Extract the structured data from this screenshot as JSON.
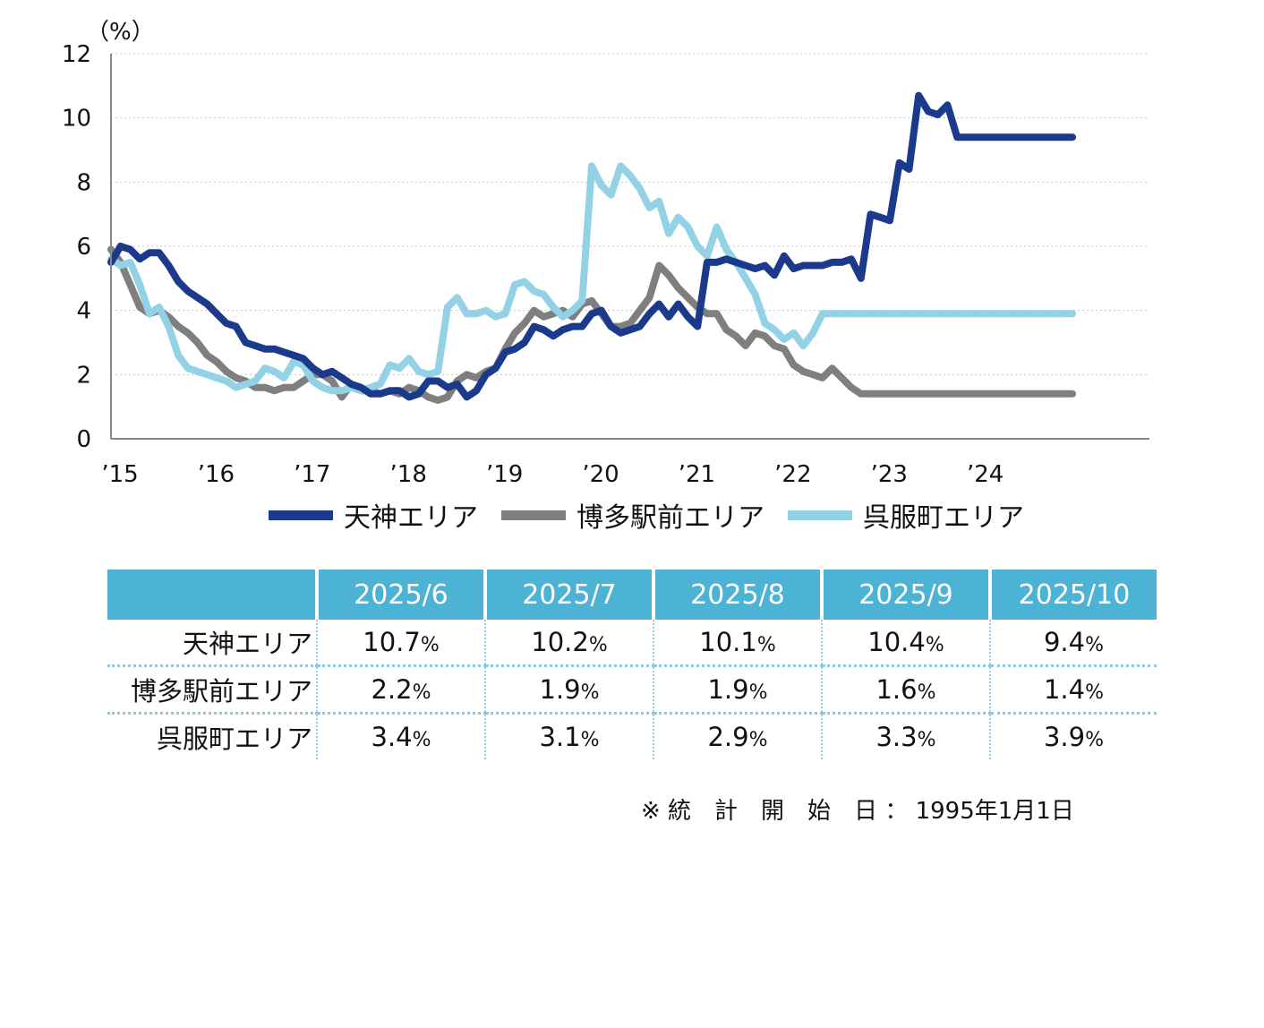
{
  "chart_data": {
    "type": "line",
    "y_unit_label": "（%）",
    "ylim": [
      0,
      12
    ],
    "yticks": [
      0,
      2,
      4,
      6,
      8,
      10,
      12
    ],
    "xlim": [
      2015.0,
      2025.8
    ],
    "xtick_labels": [
      "’15",
      "’16",
      "’17",
      "’18",
      "’19",
      "’20",
      "’21",
      "’22",
      "’23",
      "’24"
    ],
    "xtick_years": [
      2015,
      2016,
      2017,
      2018,
      2019,
      2020,
      2021,
      2022,
      2023,
      2024
    ],
    "grid": "horizontal dotted",
    "legend_position": "bottom",
    "series": [
      {
        "name": "天神エリア",
        "color": "#1c3a8c",
        "x": [
          2015.0,
          2015.1,
          2015.2,
          2015.3,
          2015.4,
          2015.5,
          2015.6,
          2015.7,
          2015.8,
          2015.9,
          2016.0,
          2016.1,
          2016.2,
          2016.3,
          2016.4,
          2016.5,
          2016.6,
          2016.7,
          2016.8,
          2016.9,
          2017.0,
          2017.1,
          2017.2,
          2017.3,
          2017.4,
          2017.5,
          2017.6,
          2017.7,
          2017.8,
          2017.9,
          2018.0,
          2018.1,
          2018.2,
          2018.3,
          2018.4,
          2018.5,
          2018.6,
          2018.7,
          2018.8,
          2018.9,
          2019.0,
          2019.1,
          2019.2,
          2019.3,
          2019.4,
          2019.5,
          2019.6,
          2019.7,
          2019.8,
          2019.9,
          2020.0,
          2020.1,
          2020.2,
          2020.3,
          2020.4,
          2020.5,
          2020.6,
          2020.7,
          2020.8,
          2020.9,
          2021.0,
          2021.1,
          2021.2,
          2021.3,
          2021.4,
          2021.5,
          2021.6,
          2021.7,
          2021.8,
          2021.9,
          2022.0,
          2022.1,
          2022.2,
          2022.3,
          2022.4,
          2022.5,
          2022.6,
          2022.7,
          2022.8,
          2022.9,
          2023.0,
          2023.1,
          2023.2,
          2023.3,
          2023.4,
          2023.5,
          2023.6,
          2023.7,
          2023.8,
          2023.9,
          2024.0,
          2024.1,
          2024.2,
          2024.3,
          2024.4,
          2024.5,
          2024.6,
          2024.7,
          2024.8,
          2024.9,
          2025.0
        ],
        "values": [
          5.5,
          6.0,
          5.9,
          5.6,
          5.8,
          5.8,
          5.4,
          4.9,
          4.6,
          4.4,
          4.2,
          3.9,
          3.6,
          3.5,
          3.0,
          2.9,
          2.8,
          2.8,
          2.7,
          2.6,
          2.5,
          2.2,
          2.0,
          2.1,
          1.9,
          1.7,
          1.6,
          1.4,
          1.4,
          1.5,
          1.5,
          1.3,
          1.4,
          1.8,
          1.8,
          1.6,
          1.7,
          1.3,
          1.5,
          2.0,
          2.2,
          2.7,
          2.8,
          3.0,
          3.5,
          3.4,
          3.2,
          3.4,
          3.5,
          3.5,
          3.9,
          4.0,
          3.5,
          3.3,
          3.4,
          3.5,
          3.9,
          4.2,
          3.8,
          4.2,
          3.8,
          3.5,
          5.5,
          5.5,
          5.6,
          5.5,
          5.4,
          5.3,
          5.4,
          5.1,
          5.7,
          5.3,
          5.4,
          5.4,
          5.4,
          5.5,
          5.5,
          5.6,
          5.0,
          7.0,
          6.9,
          6.8,
          8.6,
          8.4,
          10.7,
          10.2,
          10.1,
          10.4,
          9.4,
          9.4,
          9.4,
          9.4,
          9.4,
          9.4,
          9.4,
          9.4,
          9.4,
          9.4,
          9.4,
          9.4,
          9.4
        ]
      },
      {
        "name": "博多駅前エリア",
        "color": "#7f7f7f",
        "x": [
          2015.0,
          2015.1,
          2015.2,
          2015.3,
          2015.4,
          2015.5,
          2015.6,
          2015.7,
          2015.8,
          2015.9,
          2016.0,
          2016.1,
          2016.2,
          2016.3,
          2016.4,
          2016.5,
          2016.6,
          2016.7,
          2016.8,
          2016.9,
          2017.0,
          2017.1,
          2017.2,
          2017.3,
          2017.4,
          2017.5,
          2017.6,
          2017.7,
          2017.8,
          2017.9,
          2018.0,
          2018.1,
          2018.2,
          2018.3,
          2018.4,
          2018.5,
          2018.6,
          2018.7,
          2018.8,
          2018.9,
          2019.0,
          2019.1,
          2019.2,
          2019.3,
          2019.4,
          2019.5,
          2019.6,
          2019.7,
          2019.8,
          2019.9,
          2020.0,
          2020.1,
          2020.2,
          2020.3,
          2020.4,
          2020.5,
          2020.6,
          2020.7,
          2020.8,
          2020.9,
          2021.0,
          2021.1,
          2021.2,
          2021.3,
          2021.4,
          2021.5,
          2021.6,
          2021.7,
          2021.8,
          2021.9,
          2022.0,
          2022.1,
          2022.2,
          2022.3,
          2022.4,
          2022.5,
          2022.6,
          2022.7,
          2022.8,
          2022.9,
          2023.0,
          2023.1,
          2023.2,
          2023.3,
          2023.4,
          2023.5,
          2023.6,
          2023.7,
          2023.8,
          2023.9,
          2024.0,
          2024.1,
          2024.2,
          2024.3,
          2024.4,
          2024.5,
          2024.6,
          2024.7,
          2024.8,
          2024.9,
          2025.0
        ],
        "values": [
          5.9,
          5.5,
          4.8,
          4.1,
          3.9,
          4.0,
          3.8,
          3.5,
          3.3,
          3.0,
          2.6,
          2.4,
          2.1,
          1.9,
          1.8,
          1.6,
          1.6,
          1.5,
          1.6,
          1.6,
          1.8,
          2.0,
          2.0,
          1.8,
          1.3,
          1.7,
          1.5,
          1.5,
          1.4,
          1.5,
          1.4,
          1.6,
          1.5,
          1.3,
          1.2,
          1.3,
          1.8,
          2.0,
          1.9,
          2.1,
          2.2,
          2.8,
          3.3,
          3.6,
          4.0,
          3.8,
          3.9,
          4.0,
          3.8,
          4.2,
          4.3,
          3.9,
          3.5,
          3.5,
          3.6,
          4.0,
          4.4,
          5.4,
          5.1,
          4.7,
          4.4,
          4.1,
          3.9,
          3.9,
          3.4,
          3.2,
          2.9,
          3.3,
          3.2,
          2.9,
          2.8,
          2.3,
          2.1,
          2.0,
          1.9,
          2.2,
          1.9,
          1.6,
          1.4,
          1.4,
          1.4,
          1.4,
          1.4,
          1.4,
          1.4,
          1.4,
          1.4,
          1.4,
          1.4,
          1.4,
          1.4,
          1.4,
          1.4,
          1.4,
          1.4,
          1.4,
          1.4,
          1.4,
          1.4,
          1.4,
          1.4
        ]
      },
      {
        "name": "呉服町エリア",
        "color": "#93d1e6",
        "x": [
          2015.0,
          2015.1,
          2015.2,
          2015.3,
          2015.4,
          2015.5,
          2015.6,
          2015.7,
          2015.8,
          2015.9,
          2016.0,
          2016.1,
          2016.2,
          2016.3,
          2016.4,
          2016.5,
          2016.6,
          2016.7,
          2016.8,
          2016.9,
          2017.0,
          2017.1,
          2017.2,
          2017.3,
          2017.4,
          2017.5,
          2017.6,
          2017.7,
          2017.8,
          2017.9,
          2018.0,
          2018.1,
          2018.2,
          2018.3,
          2018.4,
          2018.5,
          2018.6,
          2018.7,
          2018.8,
          2018.9,
          2019.0,
          2019.1,
          2019.2,
          2019.3,
          2019.4,
          2019.5,
          2019.6,
          2019.7,
          2019.8,
          2019.9,
          2020.0,
          2020.1,
          2020.2,
          2020.3,
          2020.4,
          2020.5,
          2020.6,
          2020.7,
          2020.8,
          2020.9,
          2021.0,
          2021.1,
          2021.2,
          2021.3,
          2021.4,
          2021.5,
          2021.6,
          2021.7,
          2021.8,
          2021.9,
          2022.0,
          2022.1,
          2022.2,
          2022.3,
          2022.4,
          2022.5,
          2022.6,
          2022.7,
          2022.8,
          2022.9,
          2023.0,
          2023.1,
          2023.2,
          2023.3,
          2023.4,
          2023.5,
          2023.6,
          2023.7,
          2023.8,
          2023.9,
          2024.0,
          2024.1,
          2024.2,
          2024.3,
          2024.4,
          2024.5,
          2024.6,
          2024.7,
          2024.8,
          2024.9,
          2025.0
        ],
        "values": [
          5.6,
          5.4,
          5.5,
          4.8,
          3.9,
          4.1,
          3.5,
          2.6,
          2.2,
          2.1,
          2.0,
          1.9,
          1.8,
          1.6,
          1.7,
          1.8,
          2.2,
          2.1,
          1.9,
          2.4,
          2.3,
          1.8,
          1.6,
          1.5,
          1.5,
          1.6,
          1.5,
          1.6,
          1.7,
          2.3,
          2.2,
          2.5,
          2.1,
          2.0,
          2.1,
          4.1,
          4.4,
          3.9,
          3.9,
          4.0,
          3.8,
          3.9,
          4.8,
          4.9,
          4.6,
          4.5,
          4.1,
          3.8,
          4.0,
          4.3,
          8.5,
          7.9,
          7.6,
          8.5,
          8.2,
          7.8,
          7.2,
          7.4,
          6.4,
          6.9,
          6.6,
          6.0,
          5.7,
          6.6,
          5.9,
          5.5,
          5.0,
          4.5,
          3.6,
          3.4,
          3.1,
          3.3,
          2.9,
          3.3,
          3.9,
          3.9,
          3.9,
          3.9,
          3.9,
          3.9,
          3.9,
          3.9,
          3.9,
          3.9,
          3.9,
          3.9,
          3.9,
          3.9,
          3.9,
          3.9,
          3.9,
          3.9,
          3.9,
          3.9,
          3.9,
          3.9,
          3.9,
          3.9,
          3.9,
          3.9,
          3.9
        ]
      }
    ]
  },
  "table": {
    "headers": [
      "",
      "2025/6",
      "2025/7",
      "2025/8",
      "2025/9",
      "2025/10"
    ],
    "unit": "%",
    "rows": [
      {
        "label": "天神エリア",
        "values": [
          "10.7",
          "10.2",
          "10.1",
          "10.4",
          "9.4"
        ]
      },
      {
        "label": "博多駅前エリア",
        "values": [
          "2.2",
          "1.9",
          "1.9",
          "1.6",
          "1.4"
        ]
      },
      {
        "label": "呉服町エリア",
        "values": [
          "3.4",
          "3.1",
          "2.9",
          "3.3",
          "3.9"
        ]
      }
    ]
  },
  "footnote": "※ 統　計　開　始　日 ： 1995年1月1日"
}
